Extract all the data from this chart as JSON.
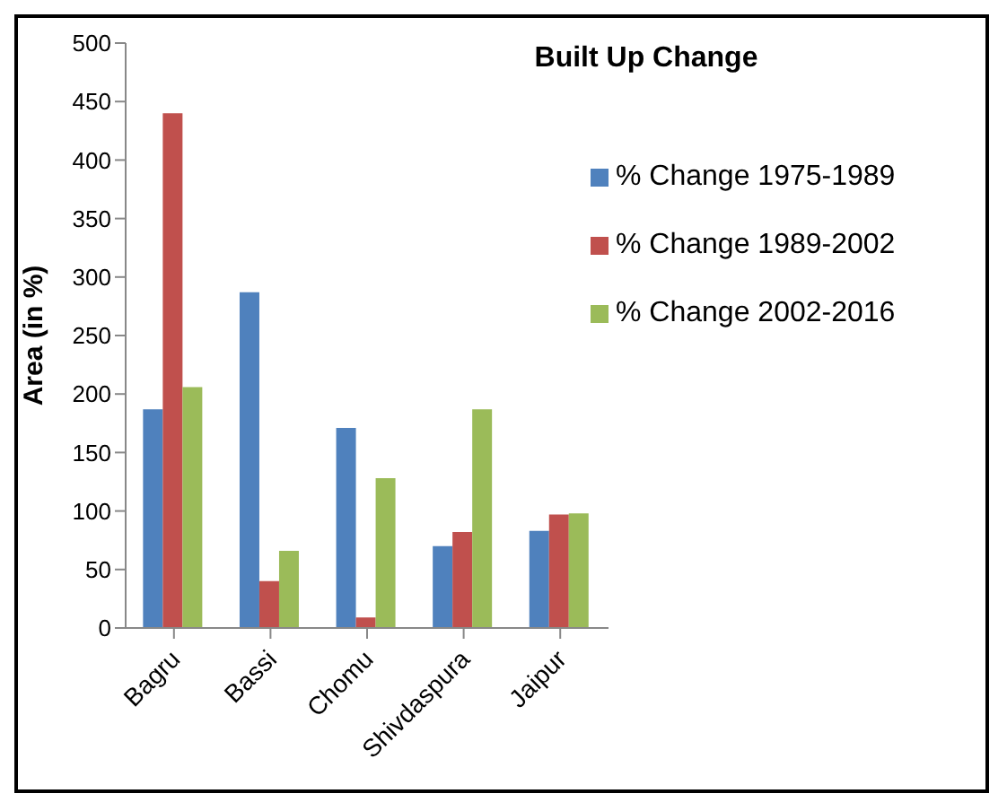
{
  "chart_data": {
    "type": "bar",
    "title": "Built Up Change",
    "ylabel": "Area (in %)",
    "categories": [
      "Bagru",
      "Bassi",
      "Chomu",
      "Shivdaspura",
      "Jaipur"
    ],
    "series": [
      {
        "name": "% Change 1975-1989",
        "color": "#4f81bd",
        "values": [
          187,
          287,
          171,
          70,
          83
        ]
      },
      {
        "name": "% Change 1989-2002",
        "color": "#c0504d",
        "values": [
          440,
          40,
          9,
          82,
          97
        ]
      },
      {
        "name": "% Change 2002-2016",
        "color": "#9bbb59",
        "values": [
          206,
          66,
          128,
          187,
          98
        ]
      }
    ],
    "ylim": [
      0,
      500
    ],
    "yticks": [
      0,
      50,
      100,
      150,
      200,
      250,
      300,
      350,
      400,
      450,
      500
    ],
    "grid": false,
    "legend": "top right"
  }
}
